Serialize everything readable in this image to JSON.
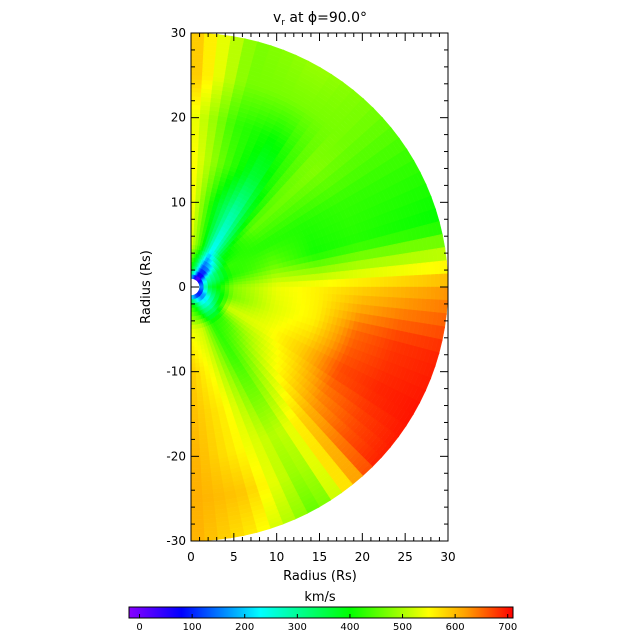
{
  "chart_data": {
    "type": "heatmap",
    "title": {
      "main": "v",
      "subscript": "r",
      "rest": " at ϕ=90.0°"
    },
    "xlabel": "Radius (Rs)",
    "ylabel": "Radius (Rs)",
    "xlim": [
      0,
      30
    ],
    "ylim": [
      -30,
      30
    ],
    "xticks": [
      0,
      5,
      10,
      15,
      20,
      25,
      30
    ],
    "yticks": [
      -30,
      -20,
      -10,
      0,
      10,
      20,
      30
    ],
    "grid": false,
    "theta_deg": [
      0,
      15,
      30,
      45,
      60,
      75,
      90,
      105,
      120,
      135,
      150,
      165,
      180
    ],
    "radius_rs": [
      1,
      2,
      5,
      10,
      15,
      20,
      25,
      30
    ],
    "vr_kms": [
      [
        150,
        80,
        20,
        10,
        30,
        80,
        100,
        80,
        60,
        60,
        80,
        120,
        150
      ],
      [
        400,
        300,
        100,
        80,
        250,
        300,
        350,
        300,
        220,
        200,
        250,
        350,
        420
      ],
      [
        540,
        420,
        220,
        380,
        430,
        420,
        480,
        470,
        520,
        430,
        420,
        520,
        540
      ],
      [
        560,
        400,
        280,
        460,
        420,
        460,
        540,
        530,
        540,
        500,
        430,
        540,
        590
      ],
      [
        560,
        450,
        360,
        470,
        420,
        410,
        560,
        560,
        590,
        560,
        460,
        560,
        600
      ],
      [
        550,
        430,
        400,
        480,
        430,
        420,
        580,
        650,
        670,
        620,
        500,
        560,
        610
      ],
      [
        600,
        470,
        470,
        470,
        430,
        410,
        600,
        680,
        690,
        660,
        480,
        590,
        610
      ],
      [
        600,
        470,
        490,
        470,
        430,
        400,
        620,
        690,
        700,
        690,
        450,
        560,
        610
      ]
    ],
    "colorbar": {
      "label": "km/s",
      "range": [
        -20,
        710
      ],
      "ticks": [
        0,
        100,
        200,
        300,
        400,
        500,
        600,
        700
      ],
      "colormap": [
        {
          "v": -20,
          "c": "#8800ff"
        },
        {
          "v": 80,
          "c": "#0000ff"
        },
        {
          "v": 230,
          "c": "#00ffff"
        },
        {
          "v": 400,
          "c": "#00ff00"
        },
        {
          "v": 550,
          "c": "#ffff00"
        },
        {
          "v": 620,
          "c": "#ffa000"
        },
        {
          "v": 710,
          "c": "#ff0000"
        }
      ]
    }
  }
}
